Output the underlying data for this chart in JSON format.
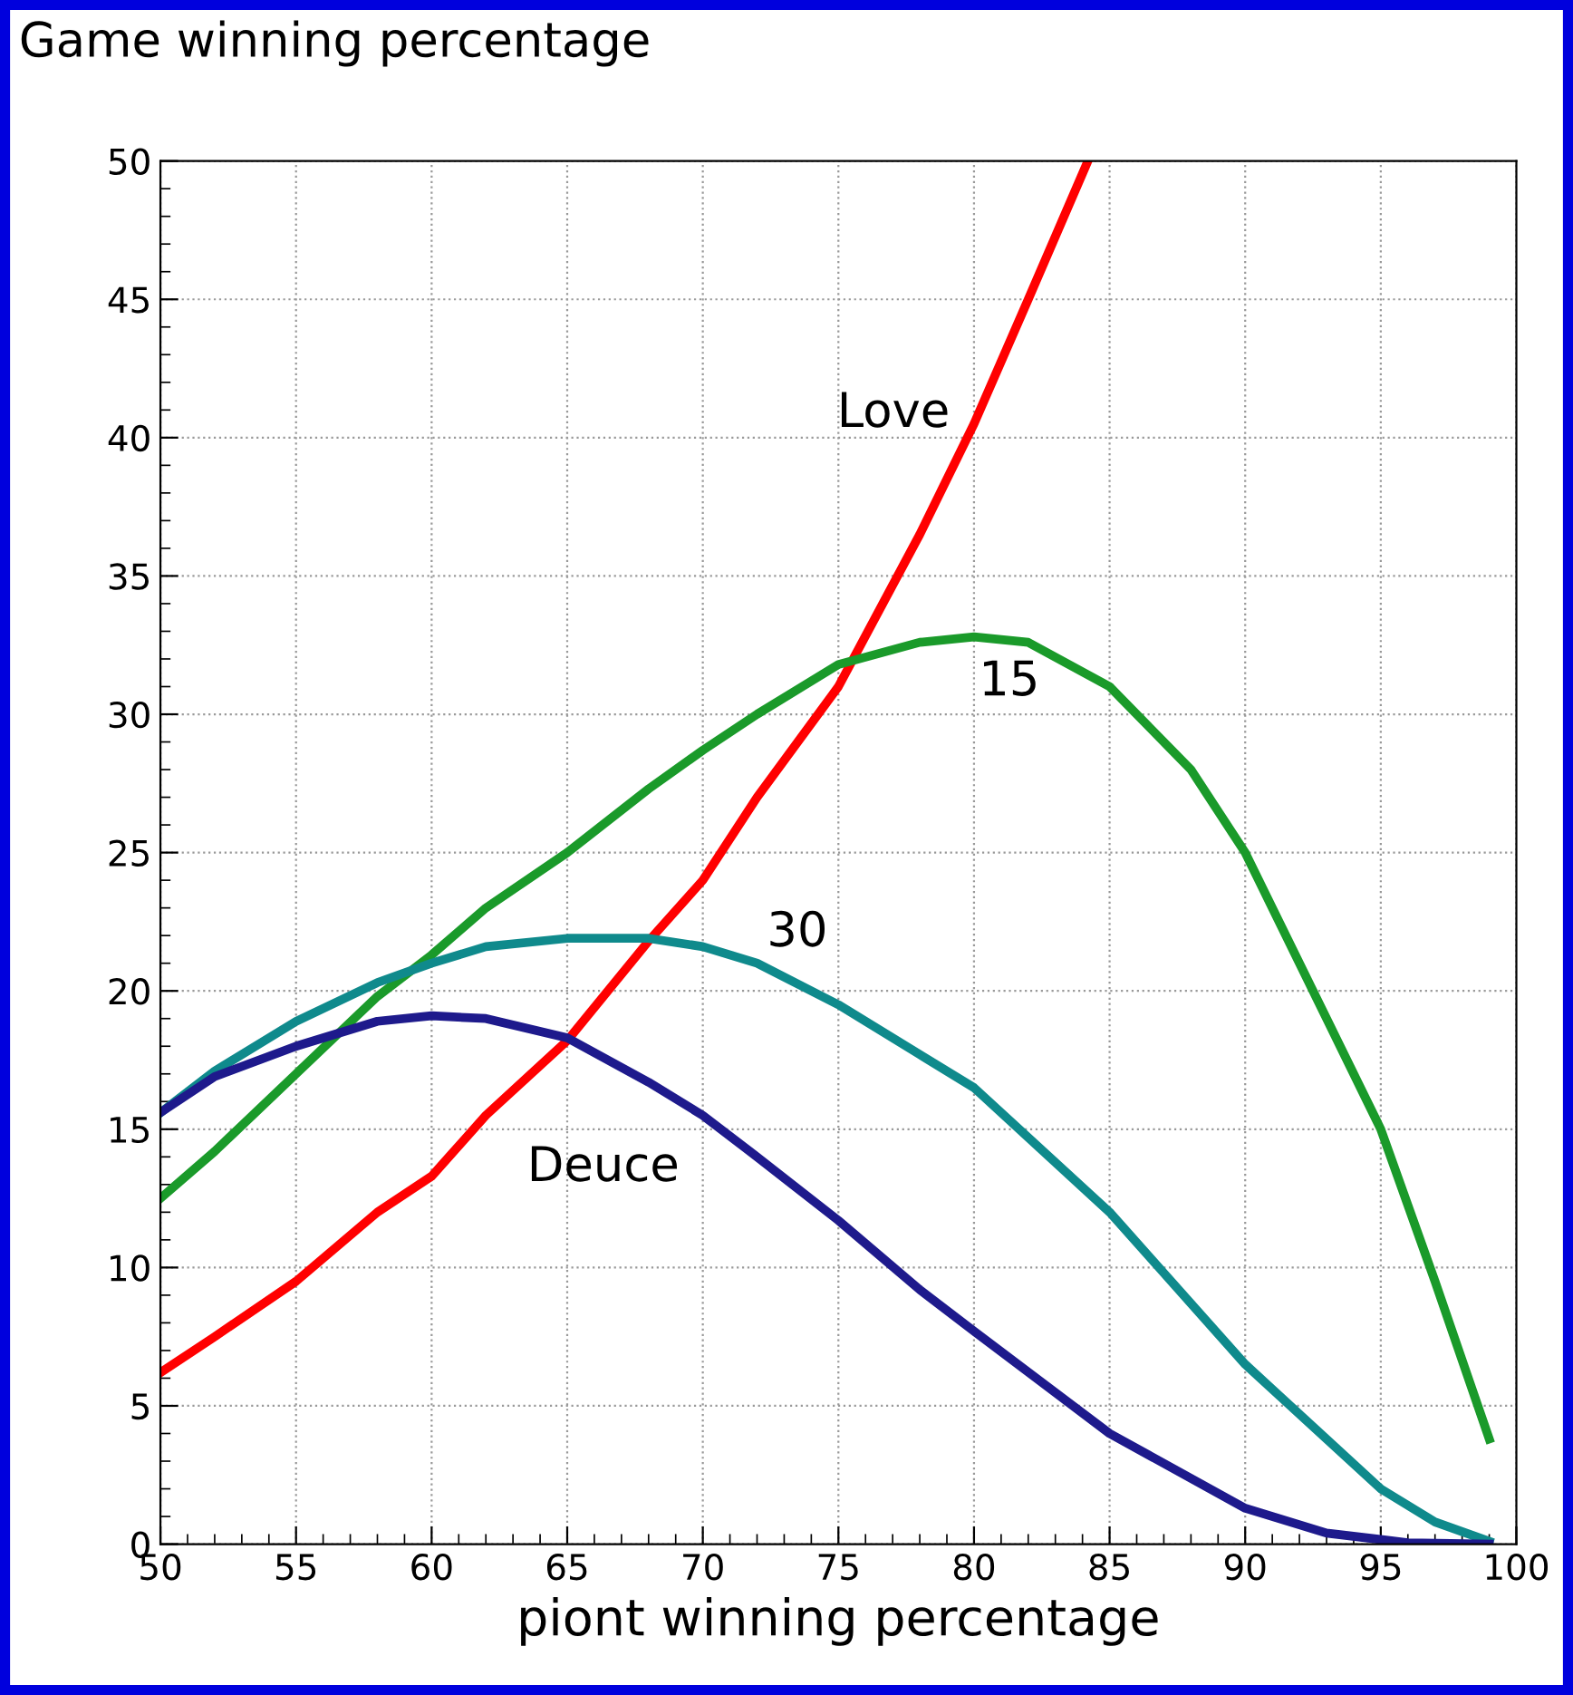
{
  "chart_data": {
    "type": "line",
    "title": "Game winning percentage",
    "xlabel": "piont winning percentage",
    "xlim": [
      50,
      100
    ],
    "ylim": [
      0,
      50
    ],
    "xticks": [
      50,
      55,
      60,
      65,
      70,
      75,
      80,
      85,
      90,
      95,
      100
    ],
    "yticks": [
      0,
      5,
      10,
      15,
      20,
      25,
      30,
      35,
      40,
      45,
      50
    ],
    "grid": true,
    "series": [
      {
        "name": "Love",
        "color": "#ff0000",
        "x": [
          50,
          52,
          55,
          58,
          60,
          62,
          65,
          68,
          70,
          72,
          75,
          78,
          80,
          82,
          84.2
        ],
        "values": [
          6.2,
          7.5,
          9.5,
          12,
          13.3,
          15.5,
          18.2,
          21.8,
          24,
          27,
          31,
          36.5,
          40.5,
          45,
          50
        ]
      },
      {
        "name": "15",
        "color": "#1a9a2a",
        "x": [
          50,
          52,
          55,
          58,
          60,
          62,
          65,
          68,
          70,
          72,
          75,
          78,
          80,
          82,
          85,
          88,
          90,
          93,
          95,
          97,
          99
        ],
        "values": [
          12.5,
          14.2,
          17,
          19.8,
          21.3,
          23,
          25,
          27.3,
          28.7,
          30,
          31.8,
          32.6,
          32.8,
          32.6,
          31,
          28,
          25,
          19,
          15,
          9.5,
          3.8
        ]
      },
      {
        "name": "30",
        "color": "#0f8a8c",
        "x": [
          50,
          52,
          55,
          58,
          60,
          62,
          65,
          68,
          70,
          72,
          75,
          78,
          80,
          85,
          90,
          95,
          97,
          99
        ],
        "values": [
          15.6,
          17.1,
          18.9,
          20.3,
          21,
          21.6,
          21.9,
          21.9,
          21.6,
          21,
          19.5,
          17.7,
          16.5,
          12,
          6.5,
          2,
          0.8,
          0.1
        ]
      },
      {
        "name": "Deuce",
        "color": "#1e1a8c",
        "x": [
          50,
          52,
          55,
          58,
          60,
          62,
          65,
          68,
          70,
          72,
          75,
          78,
          80,
          85,
          90,
          93,
          96,
          99
        ],
        "values": [
          15.6,
          16.9,
          18,
          18.9,
          19.1,
          19,
          18.3,
          16.7,
          15.5,
          14,
          11.7,
          9.2,
          7.7,
          4,
          1.3,
          0.4,
          0.05,
          0
        ]
      }
    ]
  }
}
